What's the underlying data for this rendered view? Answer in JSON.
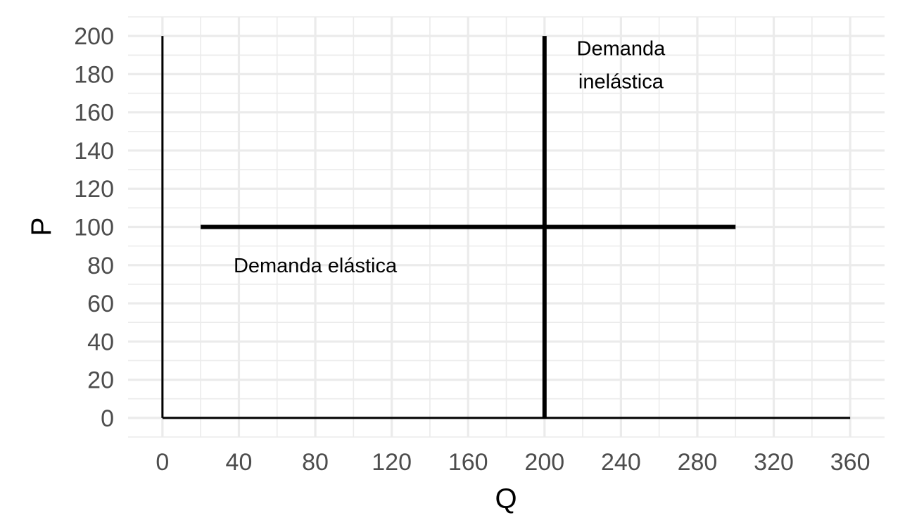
{
  "chart_data": {
    "type": "line",
    "xlabel": "Q",
    "ylabel": "P",
    "xlim": [
      -18,
      378
    ],
    "ylim": [
      -10,
      210
    ],
    "x_ticks": [
      0,
      40,
      80,
      120,
      160,
      200,
      240,
      280,
      320,
      360
    ],
    "y_ticks": [
      0,
      20,
      40,
      60,
      80,
      100,
      120,
      140,
      160,
      180,
      200
    ],
    "x_tick_labels": [
      "0",
      "40",
      "80",
      "120",
      "160",
      "200",
      "240",
      "280",
      "320",
      "360"
    ],
    "y_tick_labels": [
      "0",
      "20",
      "40",
      "60",
      "80",
      "100",
      "120",
      "140",
      "160",
      "180",
      "200"
    ],
    "grid": true,
    "series": [
      {
        "name": "Demanda elástica",
        "x": [
          20,
          300
        ],
        "y": [
          100,
          100
        ]
      },
      {
        "name": "Demanda inelástica",
        "x": [
          200,
          200
        ],
        "y": [
          0,
          200
        ]
      }
    ],
    "axis_lines": [
      {
        "x": [
          0,
          0
        ],
        "y": [
          0,
          200
        ]
      },
      {
        "x": [
          0,
          360
        ],
        "y": [
          0,
          0
        ]
      }
    ],
    "annotations": [
      {
        "lines": [
          "Demanda elástica"
        ],
        "x": 80,
        "y": 80
      },
      {
        "lines": [
          "Demanda",
          "inelástica"
        ],
        "x": 240,
        "y": 185
      }
    ],
    "colors": {
      "line": "#000000",
      "grid": "#ebebeb",
      "tick_text": "#4d4d4d"
    }
  }
}
